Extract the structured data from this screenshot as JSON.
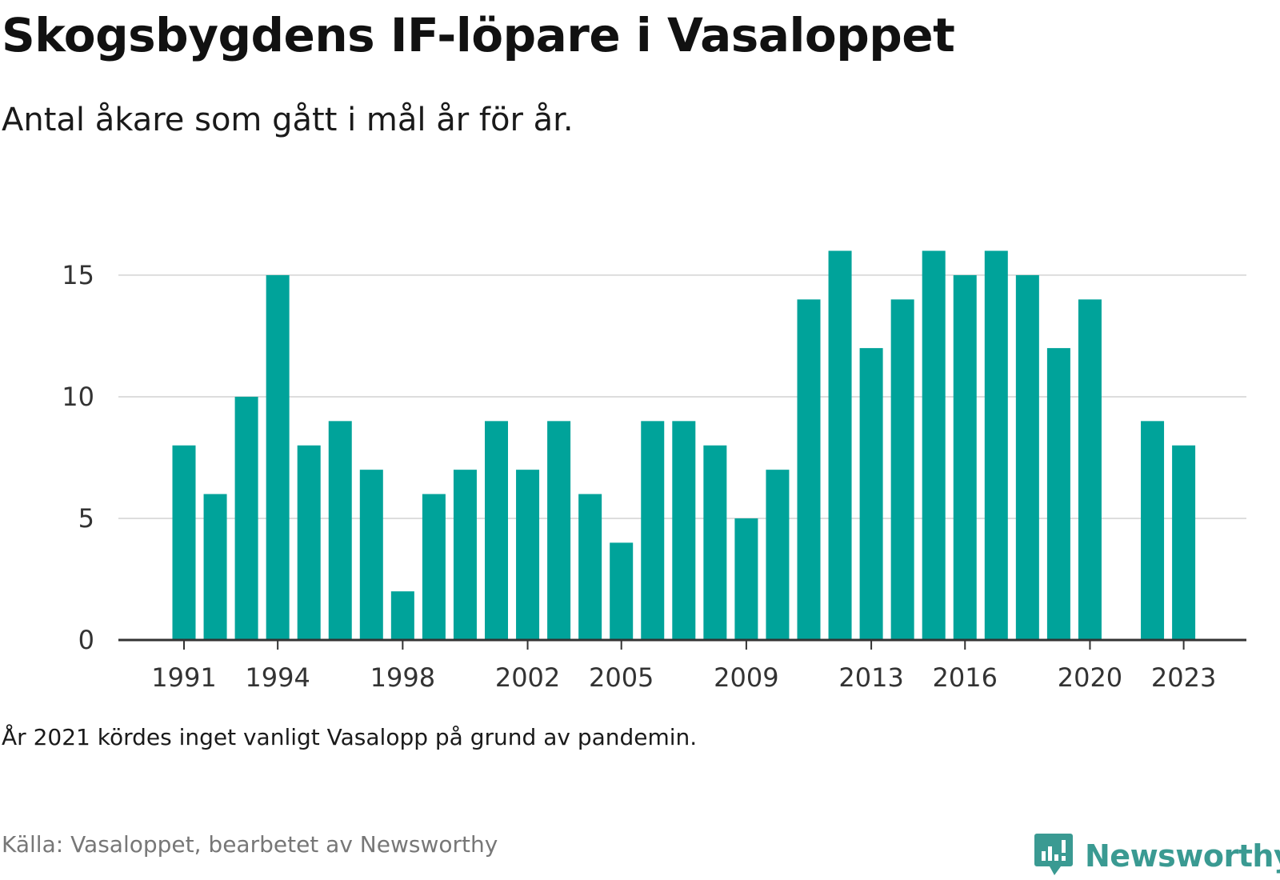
{
  "title": "Skogsbygdens IF-löpare i Vasaloppet",
  "subtitle": "Antal åkare som gått i mål år för år.",
  "note": "År 2021 kördes inget vanligt Vasalopp på grund av pandemin.",
  "source": "Källa: Vasaloppet, bearbetet av Newsworthy",
  "logo": {
    "text": "Newsworthy",
    "icon": "newsworthy-chart-bubble-icon",
    "color": "#3a9a92"
  },
  "chart_data": {
    "type": "bar",
    "title": "Skogsbygdens IF-löpare i Vasaloppet",
    "subtitle": "Antal åkare som gått i mål år för år.",
    "xlabel": "",
    "ylabel": "",
    "categories": [
      1991,
      1992,
      1993,
      1994,
      1995,
      1996,
      1997,
      1998,
      1999,
      2000,
      2001,
      2002,
      2003,
      2004,
      2005,
      2006,
      2007,
      2008,
      2009,
      2010,
      2011,
      2012,
      2013,
      2014,
      2015,
      2016,
      2017,
      2018,
      2019,
      2020,
      2021,
      2022,
      2023
    ],
    "values": [
      8,
      6,
      10,
      15,
      8,
      9,
      7,
      2,
      6,
      7,
      9,
      7,
      9,
      6,
      4,
      9,
      9,
      8,
      5,
      7,
      14,
      16,
      12,
      14,
      16,
      15,
      16,
      15,
      12,
      14,
      null,
      9,
      8
    ],
    "ylim": [
      0,
      16
    ],
    "yticks": [
      0,
      5,
      10,
      15
    ],
    "xticks": [
      1991,
      1994,
      1998,
      2002,
      2005,
      2009,
      2013,
      2016,
      2020,
      2023
    ],
    "grid": "horizontal",
    "legend": "none",
    "bar_color": "#00a39a",
    "grid_color": "#dddddd",
    "axis_color": "#333333"
  }
}
